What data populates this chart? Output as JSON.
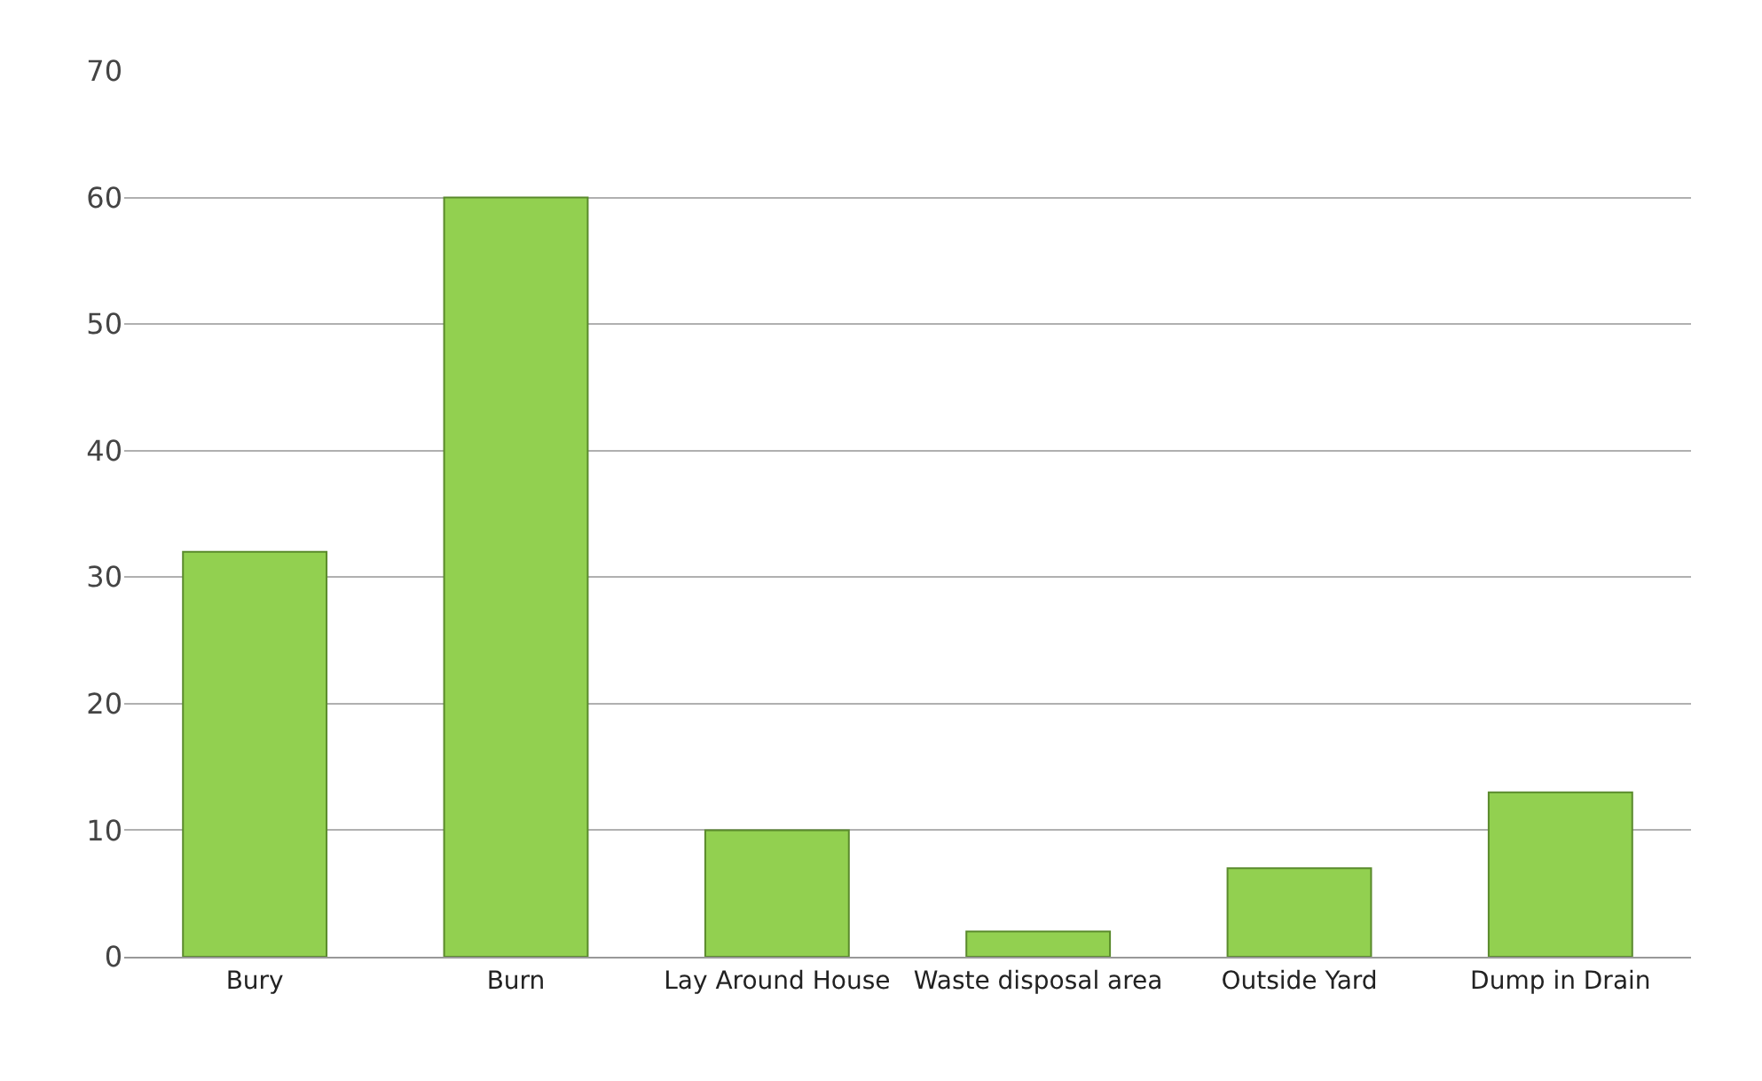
{
  "chart_data": {
    "type": "bar",
    "categories": [
      "Bury",
      "Burn",
      "Lay Around House",
      "Waste disposal area",
      "Outside Yard",
      "Dump in Drain"
    ],
    "values": [
      32,
      60,
      10,
      2,
      7,
      13
    ],
    "color": "#92d050",
    "ylim": [
      0,
      70
    ],
    "yticks": [
      0,
      10,
      20,
      30,
      40,
      50,
      60,
      70
    ],
    "grid": "y",
    "legend": false
  }
}
